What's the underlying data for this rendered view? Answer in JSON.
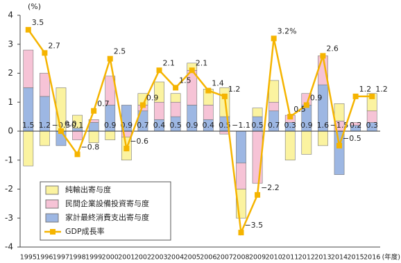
{
  "chart_data": {
    "type": "bar",
    "y_label": "(%)",
    "x_label": "(年度)",
    "categories": [
      "1995",
      "1996",
      "1997",
      "1998",
      "1999",
      "2000",
      "2001",
      "2002",
      "2003",
      "2004",
      "2005",
      "2006",
      "2007",
      "2008",
      "2009",
      "2010",
      "2011",
      "2012",
      "2013",
      "2014",
      "2015",
      "2016"
    ],
    "ylim": [
      -4,
      4
    ],
    "yticks": [
      -4,
      -3,
      -2,
      -1,
      0,
      1,
      2,
      3,
      4
    ],
    "legend": "bottom-left",
    "series": [
      {
        "name": "家計最終消費支出寄与度",
        "color": "#9db7e3",
        "values": [
          1.5,
          1.2,
          -0.5,
          0.1,
          0.3,
          0.9,
          0.9,
          0.7,
          0.4,
          0.5,
          0.9,
          0.4,
          0.5,
          -1.1,
          0.5,
          0.7,
          0.3,
          0.9,
          1.6,
          -1.5,
          0.2,
          0.3
        ],
        "value_labels": [
          "1.5",
          "1.2",
          "−0.5",
          "0.1",
          null,
          "0.9",
          "0.9",
          "0.7",
          "0.4",
          "0.5",
          "0.9",
          "0.4",
          "0.5",
          "−1.1",
          "0.5",
          "0.7",
          "0.3",
          "0.9",
          "1.6",
          "−1.5",
          "0.2",
          "0.3"
        ]
      },
      {
        "name": "民間企業設備投資寄与度",
        "color": "#f6c3d6",
        "values": [
          1.3,
          0.8,
          0,
          -0.3,
          0.1,
          1.0,
          -0.2,
          0.2,
          0.6,
          0.5,
          1.2,
          0.5,
          -0.1,
          -0.9,
          -1.8,
          0.3,
          0.25,
          0.4,
          1.0,
          0.35,
          0.1,
          0.4
        ]
      },
      {
        "name": "純輸出寄与度",
        "color": "#fbf3a0",
        "values": [
          -1.2,
          -0.5,
          1.5,
          0.45,
          -0.4,
          -0.3,
          -0.8,
          0.4,
          0.7,
          0.3,
          0.25,
          0.55,
          1.0,
          -1.0,
          0.3,
          0.75,
          -1.0,
          -0.8,
          -0.5,
          0.6,
          0,
          0.6
        ]
      },
      {
        "name": "GDP成長率",
        "type": "line",
        "color": "#f5b400",
        "values": [
          3.5,
          2.7,
          0.0,
          -0.8,
          0.7,
          2.5,
          -0.6,
          0.9,
          2.1,
          1.5,
          2.1,
          1.4,
          1.2,
          -3.5,
          -2.2,
          3.2,
          0.5,
          0.9,
          2.6,
          -0.5,
          1.2,
          1.2
        ],
        "value_labels": [
          "3.5",
          "2.7",
          "0.0",
          "−0.8",
          "0.7",
          "2.5",
          "−0.6",
          "0.9",
          "2.1",
          "1.5",
          "2.1",
          "1.4",
          "1.2",
          "−3.5",
          "−2.2",
          "3.2%",
          "0.5",
          "0.9",
          "2.6",
          "−0.5",
          "1.2",
          "1.2"
        ]
      }
    ]
  }
}
